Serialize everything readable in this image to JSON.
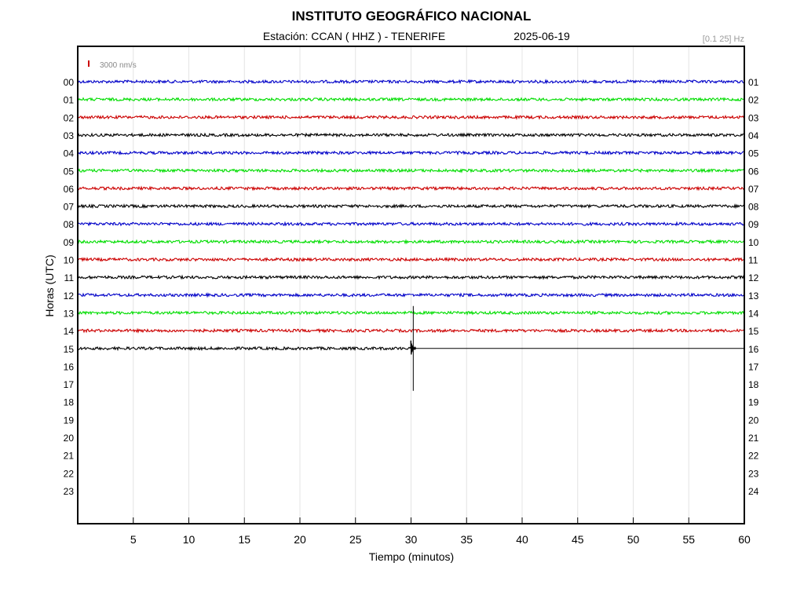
{
  "header": {
    "title": "INSTITUTO GEOGRÁFICO NACIONAL",
    "station": "Estación:  CCAN ( HHZ ) - TENERIFE",
    "date": "2025-06-19",
    "filter": "[0.1 25] Hz"
  },
  "chart_data": {
    "type": "line",
    "title": "INSTITUTO GEOGRÁFICO NACIONAL",
    "xlabel": "Tiempo (minutos)",
    "ylabel": "Horas (UTC)",
    "xlim": [
      0,
      60
    ],
    "x_ticks": [
      "5",
      "10",
      "15",
      "20",
      "25",
      "30",
      "35",
      "40",
      "45",
      "50",
      "55",
      "60"
    ],
    "left_hour_labels": [
      "00",
      "01",
      "02",
      "03",
      "04",
      "05",
      "06",
      "07",
      "08",
      "09",
      "10",
      "11",
      "12",
      "13",
      "14",
      "15",
      "16",
      "17",
      "18",
      "19",
      "20",
      "21",
      "22",
      "23"
    ],
    "right_hour_labels": [
      "01",
      "02",
      "03",
      "04",
      "05",
      "06",
      "07",
      "08",
      "09",
      "10",
      "11",
      "12",
      "13",
      "14",
      "15",
      "16",
      "17",
      "18",
      "19",
      "20",
      "21",
      "22",
      "23",
      "24"
    ],
    "scale_label": "3000 nm/s",
    "grid": "vertical every 5 minutes",
    "series_colors": [
      "#0000c8",
      "#00dd00",
      "#cc0000",
      "#000000"
    ],
    "traces": [
      {
        "hour": "00",
        "color": "#0000c8",
        "x_end": 60
      },
      {
        "hour": "01",
        "color": "#00dd00",
        "x_end": 60
      },
      {
        "hour": "02",
        "color": "#cc0000",
        "x_end": 60
      },
      {
        "hour": "03",
        "color": "#000000",
        "x_end": 60
      },
      {
        "hour": "04",
        "color": "#0000c8",
        "x_end": 60
      },
      {
        "hour": "05",
        "color": "#00dd00",
        "x_end": 60
      },
      {
        "hour": "06",
        "color": "#cc0000",
        "x_end": 60
      },
      {
        "hour": "07",
        "color": "#000000",
        "x_end": 60
      },
      {
        "hour": "08",
        "color": "#0000c8",
        "x_end": 60
      },
      {
        "hour": "09",
        "color": "#00dd00",
        "x_end": 60
      },
      {
        "hour": "10",
        "color": "#cc0000",
        "x_end": 60
      },
      {
        "hour": "11",
        "color": "#000000",
        "x_end": 60
      },
      {
        "hour": "12",
        "color": "#0000c8",
        "x_end": 60
      },
      {
        "hour": "13",
        "color": "#00dd00",
        "x_end": 60
      },
      {
        "hour": "14",
        "color": "#cc0000",
        "x_end": 60
      },
      {
        "hour": "15",
        "color": "#000000",
        "x_end": 30.2
      }
    ],
    "current_time": {
      "hour": "15",
      "minute": 30.2
    }
  }
}
